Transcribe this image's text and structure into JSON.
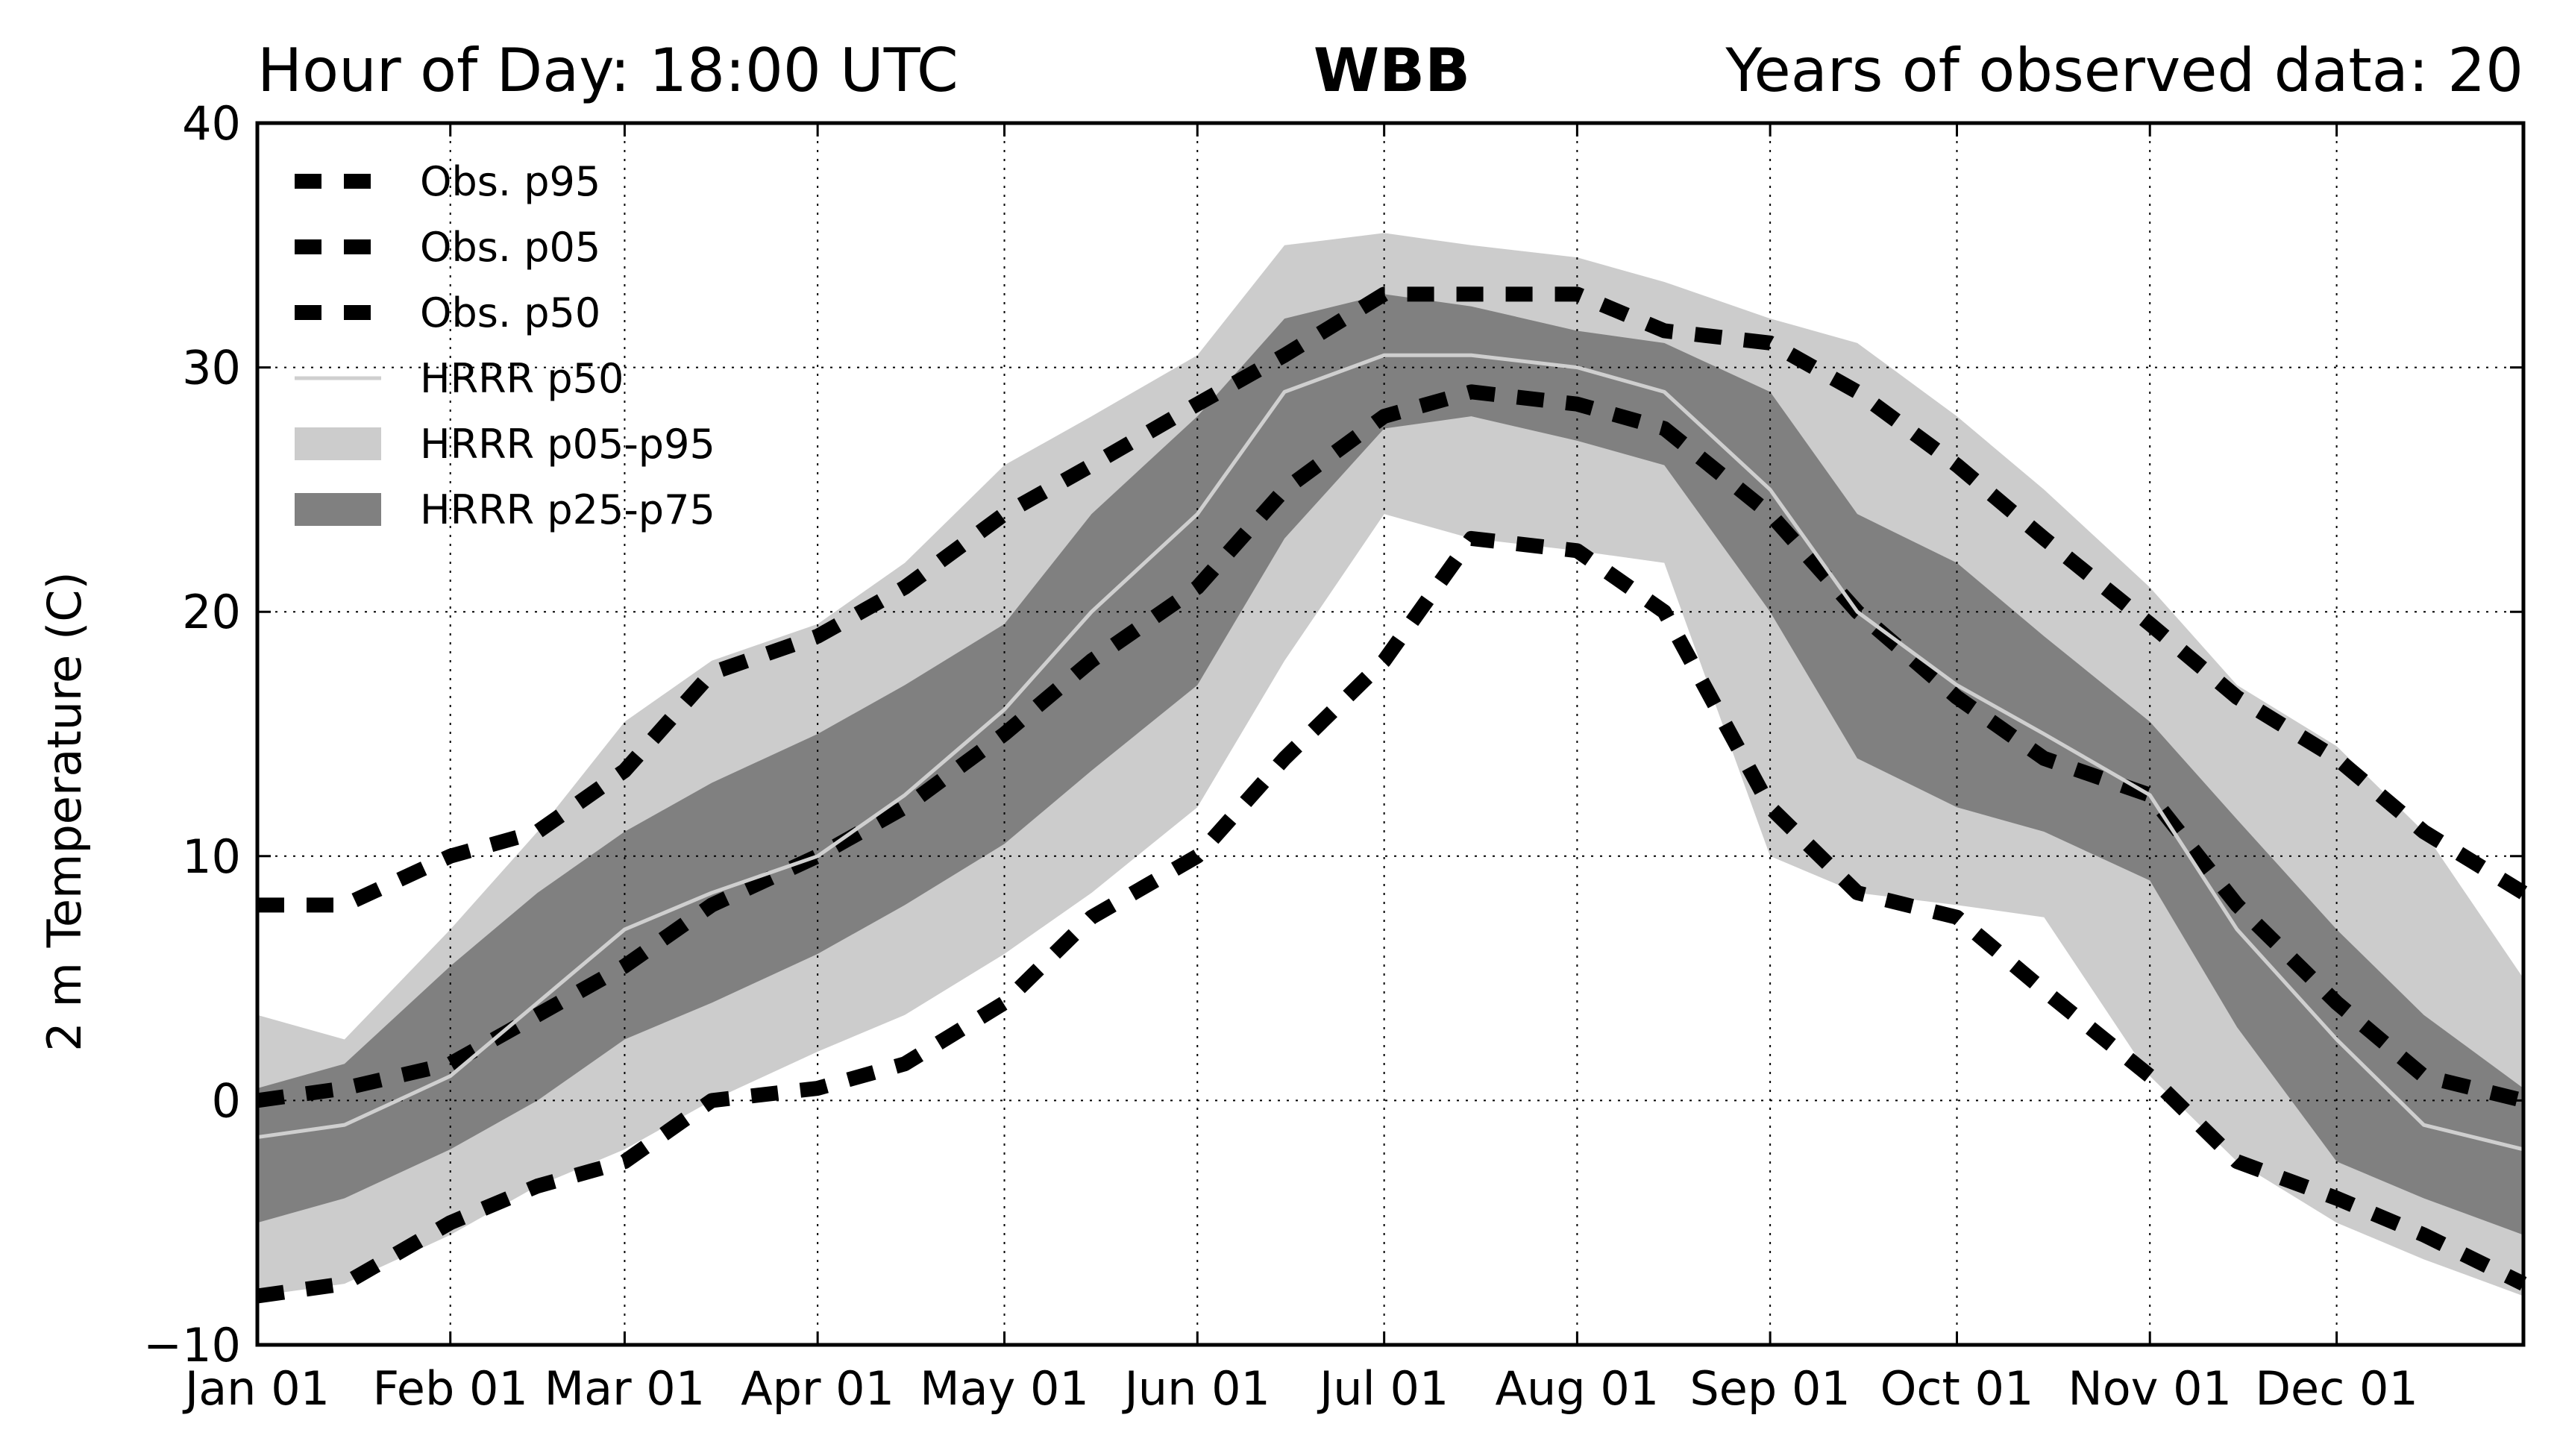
{
  "header": {
    "left": "Hour of Day: 18:00 UTC",
    "center": "WBB",
    "right": "Years of observed data: 20"
  },
  "chart_data": {
    "type": "line",
    "title": "WBB",
    "xlabel": "",
    "ylabel": "2 m Temperature (C)",
    "xlim": [
      "Jan 01",
      "Dec 31"
    ],
    "ylim": [
      -10,
      40
    ],
    "grid": true,
    "legend_position": "top-left",
    "x_ticks": [
      "Jan 01",
      "Feb 01",
      "Mar 01",
      "Apr 01",
      "May 01",
      "Jun 01",
      "Jul 01",
      "Aug 01",
      "Sep 01",
      "Oct 01",
      "Nov 01",
      "Dec 01"
    ],
    "y_ticks": [
      "40",
      "30",
      "20",
      "10",
      "0",
      "−10"
    ],
    "x": [
      "Jan 01",
      "Jan 15",
      "Feb 01",
      "Feb 15",
      "Mar 01",
      "Mar 15",
      "Apr 01",
      "Apr 15",
      "May 01",
      "May 15",
      "Jun 01",
      "Jun 15",
      "Jul 01",
      "Jul 15",
      "Aug 01",
      "Aug 15",
      "Sep 01",
      "Sep 15",
      "Oct 01",
      "Oct 15",
      "Nov 01",
      "Nov 15",
      "Dec 01",
      "Dec 15",
      "Dec 31"
    ],
    "series": [
      {
        "name": "Obs. p95",
        "style": "dashed",
        "color": "#000000",
        "values": [
          8,
          8,
          10,
          11,
          13.5,
          17.5,
          19,
          21,
          24,
          26,
          28.5,
          30.5,
          33,
          33,
          33,
          31.5,
          31,
          29,
          26,
          23,
          19.5,
          16.5,
          14,
          11,
          8.5
        ]
      },
      {
        "name": "Obs. p05",
        "style": "dashed",
        "color": "#000000",
        "values": [
          -8,
          -7.5,
          -5,
          -3.5,
          -2.5,
          0,
          0.5,
          1.5,
          4,
          7.5,
          10,
          14,
          18,
          23,
          22.5,
          20,
          12,
          8.5,
          7.5,
          4.5,
          1,
          -2.5,
          -4,
          -5.5,
          -7.5
        ]
      },
      {
        "name": "Obs. p50",
        "style": "dashed",
        "color": "#000000",
        "values": [
          0,
          0.5,
          1.5,
          3.5,
          5.5,
          8,
          10,
          12,
          15,
          18,
          21,
          25,
          28,
          29,
          28.5,
          27.5,
          24,
          20,
          16.5,
          14,
          12.5,
          8,
          4,
          1,
          0
        ]
      },
      {
        "name": "HRRR p50",
        "style": "solid",
        "color": "#cfcfcf",
        "values": [
          -1.5,
          -1,
          1,
          4,
          7,
          8.5,
          10,
          12.5,
          16,
          20,
          24,
          29,
          30.5,
          30.5,
          30,
          29,
          25,
          20,
          17,
          15,
          12.5,
          7,
          2.5,
          -1,
          -2
        ]
      },
      {
        "name": "HRRR p05-p95",
        "style": "band",
        "color": "#cccccc",
        "lower": [
          -8,
          -7.5,
          -5.5,
          -3.5,
          -2,
          0,
          2,
          3.5,
          6,
          8.5,
          12,
          18,
          24,
          23,
          22.5,
          22,
          10,
          8.5,
          8,
          7.5,
          1,
          -2.5,
          -5,
          -6.5,
          -8
        ],
        "upper": [
          3.5,
          2.5,
          7,
          11,
          15.5,
          18,
          19.5,
          22,
          26,
          28,
          30.5,
          35,
          35.5,
          35,
          34.5,
          33.5,
          32,
          31,
          28,
          25,
          21,
          17,
          14.5,
          11,
          5
        ]
      },
      {
        "name": "HRRR p25-p75",
        "style": "band",
        "color": "#808080",
        "lower": [
          -5,
          -4,
          -2,
          0,
          2.5,
          4,
          6,
          8,
          10.5,
          13.5,
          17,
          23,
          27.5,
          28,
          27,
          26,
          20,
          14,
          12,
          11,
          9,
          3,
          -2.5,
          -4,
          -5.5
        ],
        "upper": [
          0.5,
          1.5,
          5.5,
          8.5,
          11,
          13,
          15,
          17,
          19.5,
          24,
          28,
          32,
          33,
          32.5,
          31.5,
          31,
          29,
          24,
          22,
          19,
          15.5,
          11.5,
          7,
          3.5,
          0.5
        ]
      }
    ]
  }
}
